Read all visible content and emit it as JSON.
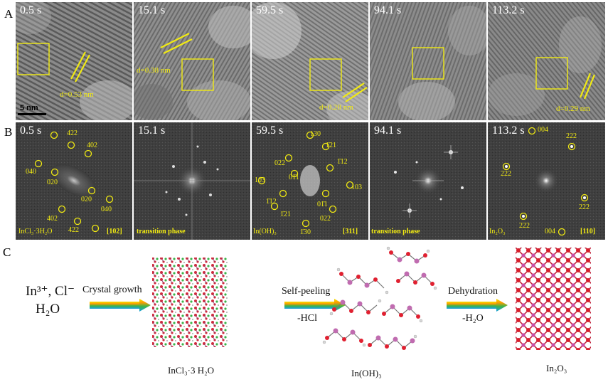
{
  "panel_letters": {
    "a": "A",
    "b": "B",
    "c": "C"
  },
  "row_a": {
    "times": [
      "0.5 s",
      "15.1 s",
      "59.5 s",
      "94.1 s",
      "113.2 s"
    ],
    "d_labels": [
      "d=0.53 nm",
      "d=0.38 nm",
      "d=0.28 nm",
      "d=0.29 nm"
    ],
    "scale_bar": "5 nm"
  },
  "row_b": {
    "times": [
      "0.5 s",
      "15.1 s",
      "59.5 s",
      "94.1 s",
      "113.2 s"
    ],
    "phase_labels": [
      "InCl₃·3H₂O",
      "transition phase",
      "In(OH)₃",
      "transition phase",
      "In₂O₃"
    ],
    "zone_axes": [
      "[102]",
      "[311]",
      "[110]"
    ],
    "spots1": [
      "422",
      "402",
      "040",
      "020",
      "020",
      "040",
      "402",
      "422"
    ],
    "spots3": [
      "130",
      "1̄21",
      "1̄12",
      "022",
      "01̄1",
      "103",
      "103",
      "01̄1",
      "1̄12",
      "1̄21",
      "022",
      "1̄30"
    ],
    "spots5": [
      "004",
      "222",
      "222",
      "222",
      "222",
      "004"
    ]
  },
  "scheme": {
    "reactants_line1": "In³⁺, Cl⁻",
    "reactants_line2": "H₂O",
    "step1": "Crystal growth",
    "step2_top": "Self-peeling",
    "step2_bottom": "-HCl",
    "step3_top": "Dehydration",
    "step3_bottom": "-H₂O",
    "product1": "InCl₃·3 H₂O",
    "product2": "In(OH)₃",
    "product3": "In₂O₃"
  }
}
